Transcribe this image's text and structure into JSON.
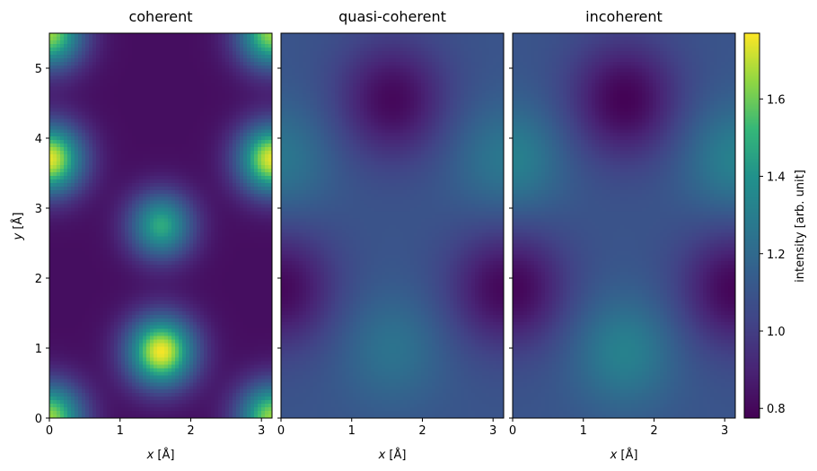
{
  "chart_data": {
    "type": "heatmap",
    "colormap": "viridis",
    "panels": [
      {
        "title": "coherent",
        "xlabel": "x [Å]",
        "ylabel": "y [Å]",
        "xlim": [
          0,
          3.15
        ],
        "ylim": [
          0,
          5.5
        ],
        "x_ticks": [
          "0",
          "1",
          "2",
          "3"
        ],
        "y_ticks": [
          "0",
          "1",
          "2",
          "3",
          "4",
          "5"
        ],
        "peaks": [
          {
            "x": 1.58,
            "y": 0.95,
            "value": 1.76
          },
          {
            "x": 1.58,
            "y": 2.75,
            "value": 1.48
          },
          {
            "x": 0.0,
            "y": 3.7,
            "value": 1.74
          },
          {
            "x": 3.15,
            "y": 3.7,
            "value": 1.74
          },
          {
            "x": 0.0,
            "y": 0.0,
            "value": 1.65
          },
          {
            "x": 3.15,
            "y": 0.0,
            "value": 1.65
          },
          {
            "x": 0.0,
            "y": 5.5,
            "value": 1.65
          },
          {
            "x": 3.15,
            "y": 5.5,
            "value": 1.65
          }
        ],
        "background": 0.82
      },
      {
        "title": "quasi-coherent",
        "xlabel": "x [Å]",
        "xlim": [
          0,
          3.15
        ],
        "ylim": [
          0,
          5.5
        ],
        "x_ticks": [
          "0",
          "1",
          "2",
          "3"
        ],
        "minima": [
          {
            "x": 1.58,
            "y": 4.55,
            "value": 0.8
          },
          {
            "x": 0.0,
            "y": 1.85,
            "value": 0.8
          },
          {
            "x": 3.15,
            "y": 1.85,
            "value": 0.8
          }
        ],
        "background": 1.1,
        "highs": [
          {
            "x": 1.58,
            "y": 1.0,
            "value": 1.25
          },
          {
            "x": 0.0,
            "y": 3.7,
            "value": 1.27
          },
          {
            "x": 3.15,
            "y": 3.7,
            "value": 1.27
          }
        ]
      },
      {
        "title": "incoherent",
        "xlabel": "x [Å]",
        "xlim": [
          0,
          3.15
        ],
        "ylim": [
          0,
          5.5
        ],
        "x_ticks": [
          "0",
          "1",
          "2",
          "3"
        ],
        "minima": [
          {
            "x": 1.58,
            "y": 4.55,
            "value": 0.78
          },
          {
            "x": 0.0,
            "y": 1.85,
            "value": 0.79
          },
          {
            "x": 3.15,
            "y": 1.85,
            "value": 0.79
          }
        ],
        "background": 1.1,
        "highs": [
          {
            "x": 1.58,
            "y": 0.95,
            "value": 1.32
          },
          {
            "x": 0.0,
            "y": 3.7,
            "value": 1.32
          },
          {
            "x": 3.15,
            "y": 3.7,
            "value": 1.32
          }
        ]
      }
    ],
    "colorbar": {
      "label": "intensity [arb. unit]",
      "range": [
        0.775,
        1.77
      ],
      "ticks": [
        "0.8",
        "1.0",
        "1.2",
        "1.4",
        "1.6"
      ],
      "tick_values": [
        0.8,
        1.0,
        1.2,
        1.4,
        1.6
      ]
    }
  }
}
